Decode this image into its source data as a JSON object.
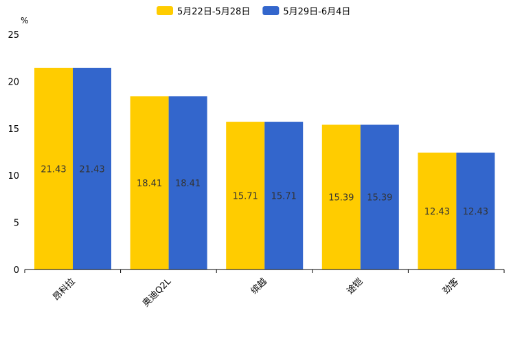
{
  "chart_data": {
    "type": "bar",
    "title": "",
    "xlabel": "",
    "ylabel": "%",
    "ylim": [
      0,
      25
    ],
    "yticks": [
      0,
      5,
      10,
      15,
      20,
      25
    ],
    "grid": false,
    "legend_position": "top-center",
    "categories": [
      "昂科拉",
      "奥迪Q2L",
      "缤越",
      "途铠",
      "劲客"
    ],
    "series": [
      {
        "name": "5月22日-5月28日",
        "color": "#FFCC00",
        "values": [
          21.43,
          18.41,
          15.71,
          15.39,
          12.43
        ]
      },
      {
        "name": "5月29日-6月4日",
        "color": "#3366CC",
        "values": [
          21.43,
          18.41,
          15.71,
          15.39,
          12.43
        ]
      }
    ]
  }
}
